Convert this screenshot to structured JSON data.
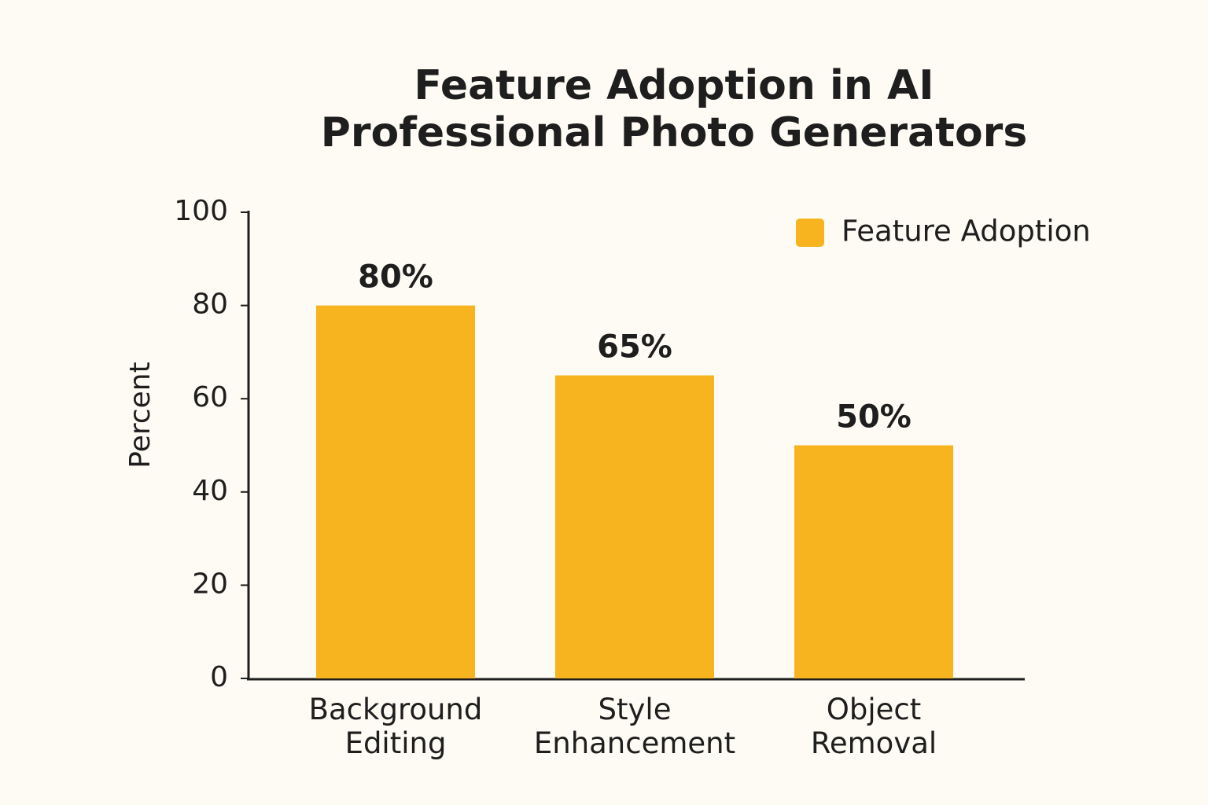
{
  "chart_data": {
    "type": "bar",
    "title": "Feature Adoption in AI Professional Photo Generators",
    "y_label": "Percent",
    "categories": [
      "Background Editing",
      "Style Enhancement",
      "Object Removal"
    ],
    "series": [
      {
        "name": "Feature Adoption",
        "color": "#f7b41f",
        "values": [
          80,
          65,
          50
        ],
        "value_labels": [
          "80%",
          "65%",
          "50%"
        ]
      }
    ],
    "ylim": [
      0,
      100
    ],
    "yticks": [
      0,
      20,
      40,
      60,
      80,
      100
    ],
    "grid": false,
    "legend": "upper right"
  }
}
